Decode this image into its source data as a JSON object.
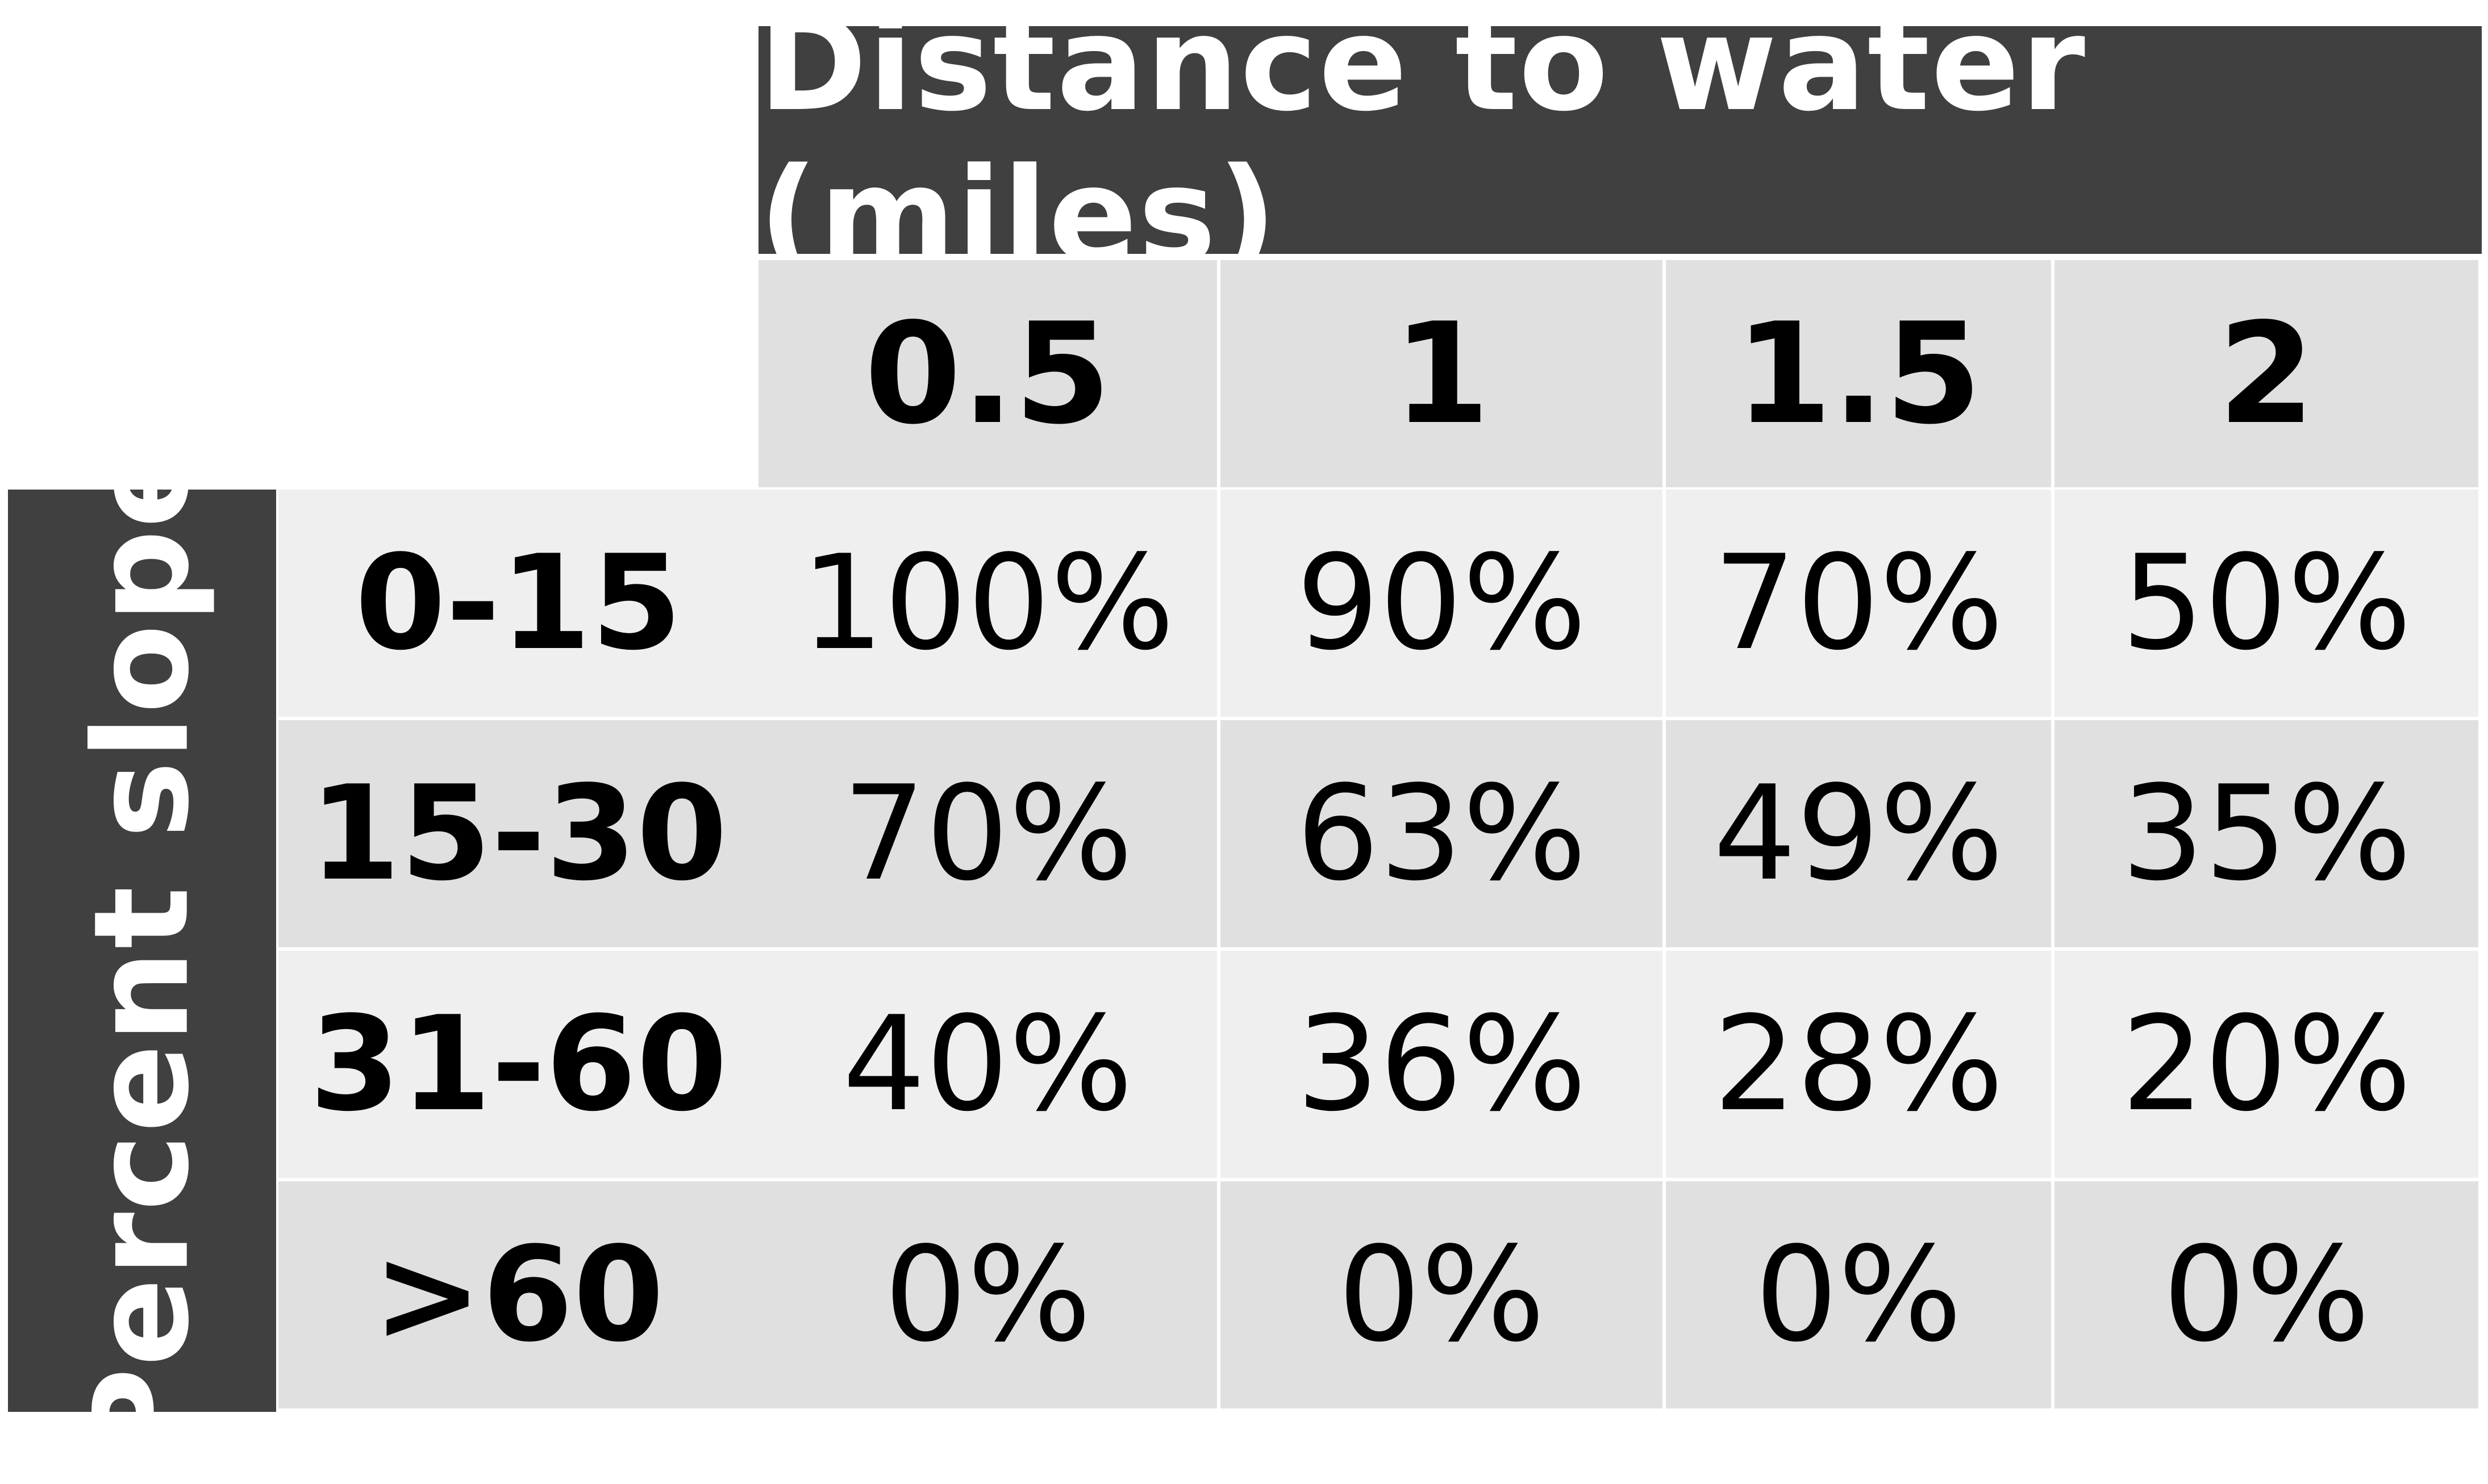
{
  "chart_data": {
    "type": "table",
    "column_header_title": "Distance to water (miles)",
    "row_header_title": "Percent slope",
    "columns": [
      "0.5",
      "1",
      "1.5",
      "2"
    ],
    "rows": [
      {
        "label": "0-15",
        "values": [
          "100%",
          "90%",
          "70%",
          "50%"
        ]
      },
      {
        "label": "15-30",
        "values": [
          "70%",
          "63%",
          "49%",
          "35%"
        ]
      },
      {
        "label": "31-60",
        "values": [
          "40%",
          "36%",
          "28%",
          "20%"
        ]
      },
      {
        "label": ">60",
        "values": [
          "0%",
          "0%",
          "0%",
          "0%"
        ]
      }
    ],
    "colors": {
      "header_bg": "#404040",
      "header_text": "#ffffff",
      "cell_light": "#efefef",
      "cell_mid": "#e0e0e0",
      "text": "#000000"
    }
  }
}
